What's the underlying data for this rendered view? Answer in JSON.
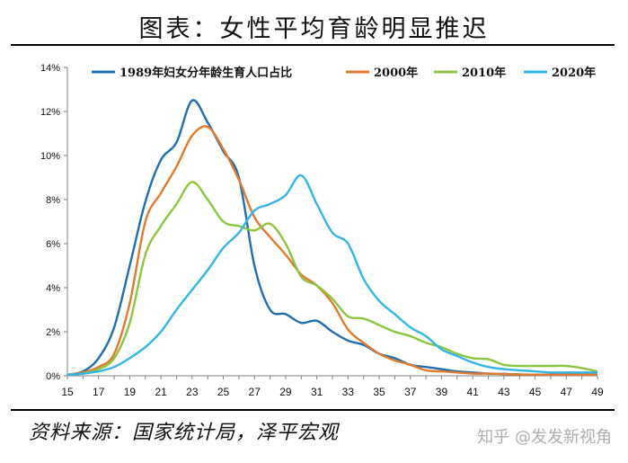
{
  "title": "图表：女性平均育龄明显推迟",
  "source": "资料来源：国家统计局，泽平宏观",
  "watermark": "知乎 @发发新视角",
  "chart_data": {
    "type": "line",
    "x": [
      15,
      16,
      17,
      18,
      19,
      20,
      21,
      22,
      23,
      24,
      25,
      26,
      27,
      28,
      29,
      30,
      31,
      32,
      33,
      34,
      35,
      36,
      37,
      38,
      39,
      40,
      41,
      42,
      43,
      44,
      45,
      46,
      47,
      48,
      49
    ],
    "xticks": [
      15,
      17,
      19,
      21,
      23,
      25,
      27,
      29,
      31,
      33,
      35,
      37,
      39,
      41,
      43,
      45,
      47,
      49
    ],
    "yticks": [
      0,
      2,
      4,
      6,
      8,
      10,
      12,
      14
    ],
    "ylim": [
      0,
      14
    ],
    "xlim": [
      15,
      49
    ],
    "y_unit": "%",
    "legend_position": "top",
    "series": [
      {
        "name": "1989年妇女分年龄生育人口占比",
        "color": "#1f6fb0",
        "values": [
          0.05,
          0.2,
          0.8,
          2.2,
          5.0,
          7.9,
          9.8,
          10.6,
          12.5,
          11.5,
          10.2,
          9.0,
          5.0,
          3.0,
          2.8,
          2.4,
          2.5,
          2.0,
          1.6,
          1.4,
          1.0,
          0.8,
          0.5,
          0.4,
          0.3,
          0.2,
          0.15,
          0.1,
          0.08,
          0.06,
          0.05,
          0.05,
          0.05,
          0.05,
          0.05
        ]
      },
      {
        "name": "2000年",
        "color": "#e07a2e",
        "values": [
          0.05,
          0.15,
          0.4,
          1.0,
          3.3,
          7.0,
          8.3,
          9.5,
          10.9,
          11.3,
          10.3,
          8.9,
          7.2,
          6.3,
          5.5,
          4.6,
          4.1,
          3.3,
          2.1,
          1.5,
          1.0,
          0.7,
          0.5,
          0.25,
          0.2,
          0.15,
          0.1,
          0.1,
          0.08,
          0.06,
          0.05,
          0.05,
          0.05,
          0.05,
          0.05
        ]
      },
      {
        "name": "2010年",
        "color": "#8cc63f",
        "values": [
          0.05,
          0.1,
          0.3,
          0.8,
          2.4,
          5.5,
          6.8,
          7.8,
          8.8,
          8.0,
          7.0,
          6.8,
          6.6,
          6.9,
          6.0,
          4.5,
          4.1,
          3.5,
          2.7,
          2.6,
          2.3,
          2.0,
          1.8,
          1.5,
          1.3,
          1.0,
          0.8,
          0.75,
          0.5,
          0.45,
          0.45,
          0.45,
          0.45,
          0.35,
          0.2
        ]
      },
      {
        "name": "2020年",
        "color": "#33b5e5",
        "values": [
          0.05,
          0.1,
          0.2,
          0.4,
          0.8,
          1.3,
          2.0,
          3.0,
          3.9,
          4.8,
          5.8,
          6.5,
          7.5,
          7.8,
          8.2,
          9.1,
          7.8,
          6.5,
          6.0,
          4.4,
          3.4,
          2.8,
          2.2,
          1.8,
          1.2,
          0.9,
          0.6,
          0.4,
          0.3,
          0.25,
          0.2,
          0.15,
          0.15,
          0.15,
          0.15
        ]
      }
    ]
  }
}
